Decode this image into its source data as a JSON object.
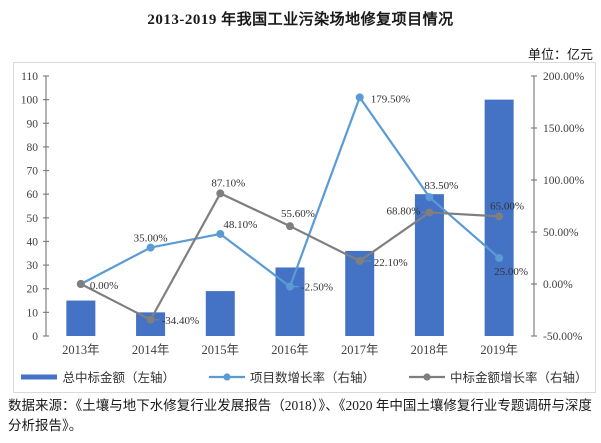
{
  "title": "2013-2019 年我国工业污染场地修复项目情况",
  "unit_label": "单位：亿元",
  "source_note": "数据来源：《土壤与地下水修复行业发展报告（2018）》、《2020 年中国土壤修复行业专题调研与深度分析报告》。",
  "colors": {
    "bar_blue": "#4472C4",
    "line_blue": "#5B9BD5",
    "line_gray": "#7F7F7F",
    "axis": "#808080",
    "axis_text": "#404040",
    "label_text": "#333333",
    "box_border": "#d9d9d9"
  },
  "chart_data": {
    "type": "bar+line combo",
    "categories": [
      "2013年",
      "2014年",
      "2015年",
      "2016年",
      "2017年",
      "2018年",
      "2019年"
    ],
    "left_axis": {
      "min": 0,
      "max": 110,
      "step": 10,
      "tick_values": [
        0,
        10,
        20,
        30,
        40,
        50,
        60,
        70,
        80,
        90,
        100,
        110
      ],
      "tick_labels": [
        "0",
        "10",
        "20",
        "30",
        "40",
        "50",
        "60",
        "70",
        "80",
        "90",
        "100",
        "110"
      ]
    },
    "right_axis": {
      "min": -50,
      "max": 200,
      "step": 50,
      "tick_values": [
        -50,
        0,
        50,
        100,
        150,
        200
      ],
      "tick_labels": [
        "-50.00%",
        "0.00%",
        "50.00%",
        "100.00%",
        "150.00%",
        "200.00%"
      ]
    },
    "series": [
      {
        "name": "总中标金额（左轴）",
        "type": "bar",
        "axis": "left",
        "color": "#4472C4",
        "values": [
          15,
          10,
          19,
          29,
          36,
          60,
          100
        ]
      },
      {
        "name": "项目数增长率（右轴）",
        "type": "line",
        "axis": "right",
        "color": "#5B9BD5",
        "values": [
          0,
          35,
          48.1,
          -2.5,
          179.5,
          83.5,
          25
        ],
        "point_labels": [
          {
            "text": "",
            "dx": 0,
            "dy": 0,
            "anchor": "middle",
            "leader": false
          },
          {
            "text": "35.00%",
            "dx": 0,
            "dy": -6,
            "anchor": "middle",
            "leader": false
          },
          {
            "text": "48.10%",
            "dx": 20,
            "dy": -6,
            "anchor": "middle",
            "leader": false
          },
          {
            "text": "-2.50%",
            "dx": 11,
            "dy": 4,
            "anchor": "start",
            "leader": true
          },
          {
            "text": "179.50%",
            "dx": 11,
            "dy": 5,
            "anchor": "start",
            "leader": false
          },
          {
            "text": "83.50%",
            "dx": -5,
            "dy": -8,
            "anchor": "start",
            "leader": false
          },
          {
            "text": "25.00%",
            "dx": 12,
            "dy": 17,
            "anchor": "middle",
            "leader": false
          }
        ]
      },
      {
        "name": "中标金额增长率（右轴）",
        "type": "line",
        "axis": "right",
        "color": "#7F7F7F",
        "values": [
          0,
          -34.4,
          87.1,
          55.6,
          22.1,
          68.8,
          65
        ],
        "point_labels": [
          {
            "text": "0.00%",
            "dx": 9,
            "dy": 5,
            "anchor": "start",
            "leader": false
          },
          {
            "text": "-34.40%",
            "dx": 11,
            "dy": 4,
            "anchor": "start",
            "leader": true
          },
          {
            "text": "87.10%",
            "dx": 8,
            "dy": -7,
            "anchor": "middle",
            "leader": false
          },
          {
            "text": "55.60%",
            "dx": 8,
            "dy": -9,
            "anchor": "middle",
            "leader": false
          },
          {
            "text": "22.10%",
            "dx": 14,
            "dy": 5,
            "anchor": "start",
            "leader": true
          },
          {
            "text": "68.80%",
            "dx": -9,
            "dy": 2,
            "anchor": "end",
            "leader": true
          },
          {
            "text": "65.00%",
            "dx": 8,
            "dy": -7,
            "anchor": "middle",
            "leader": false
          }
        ]
      }
    ]
  }
}
